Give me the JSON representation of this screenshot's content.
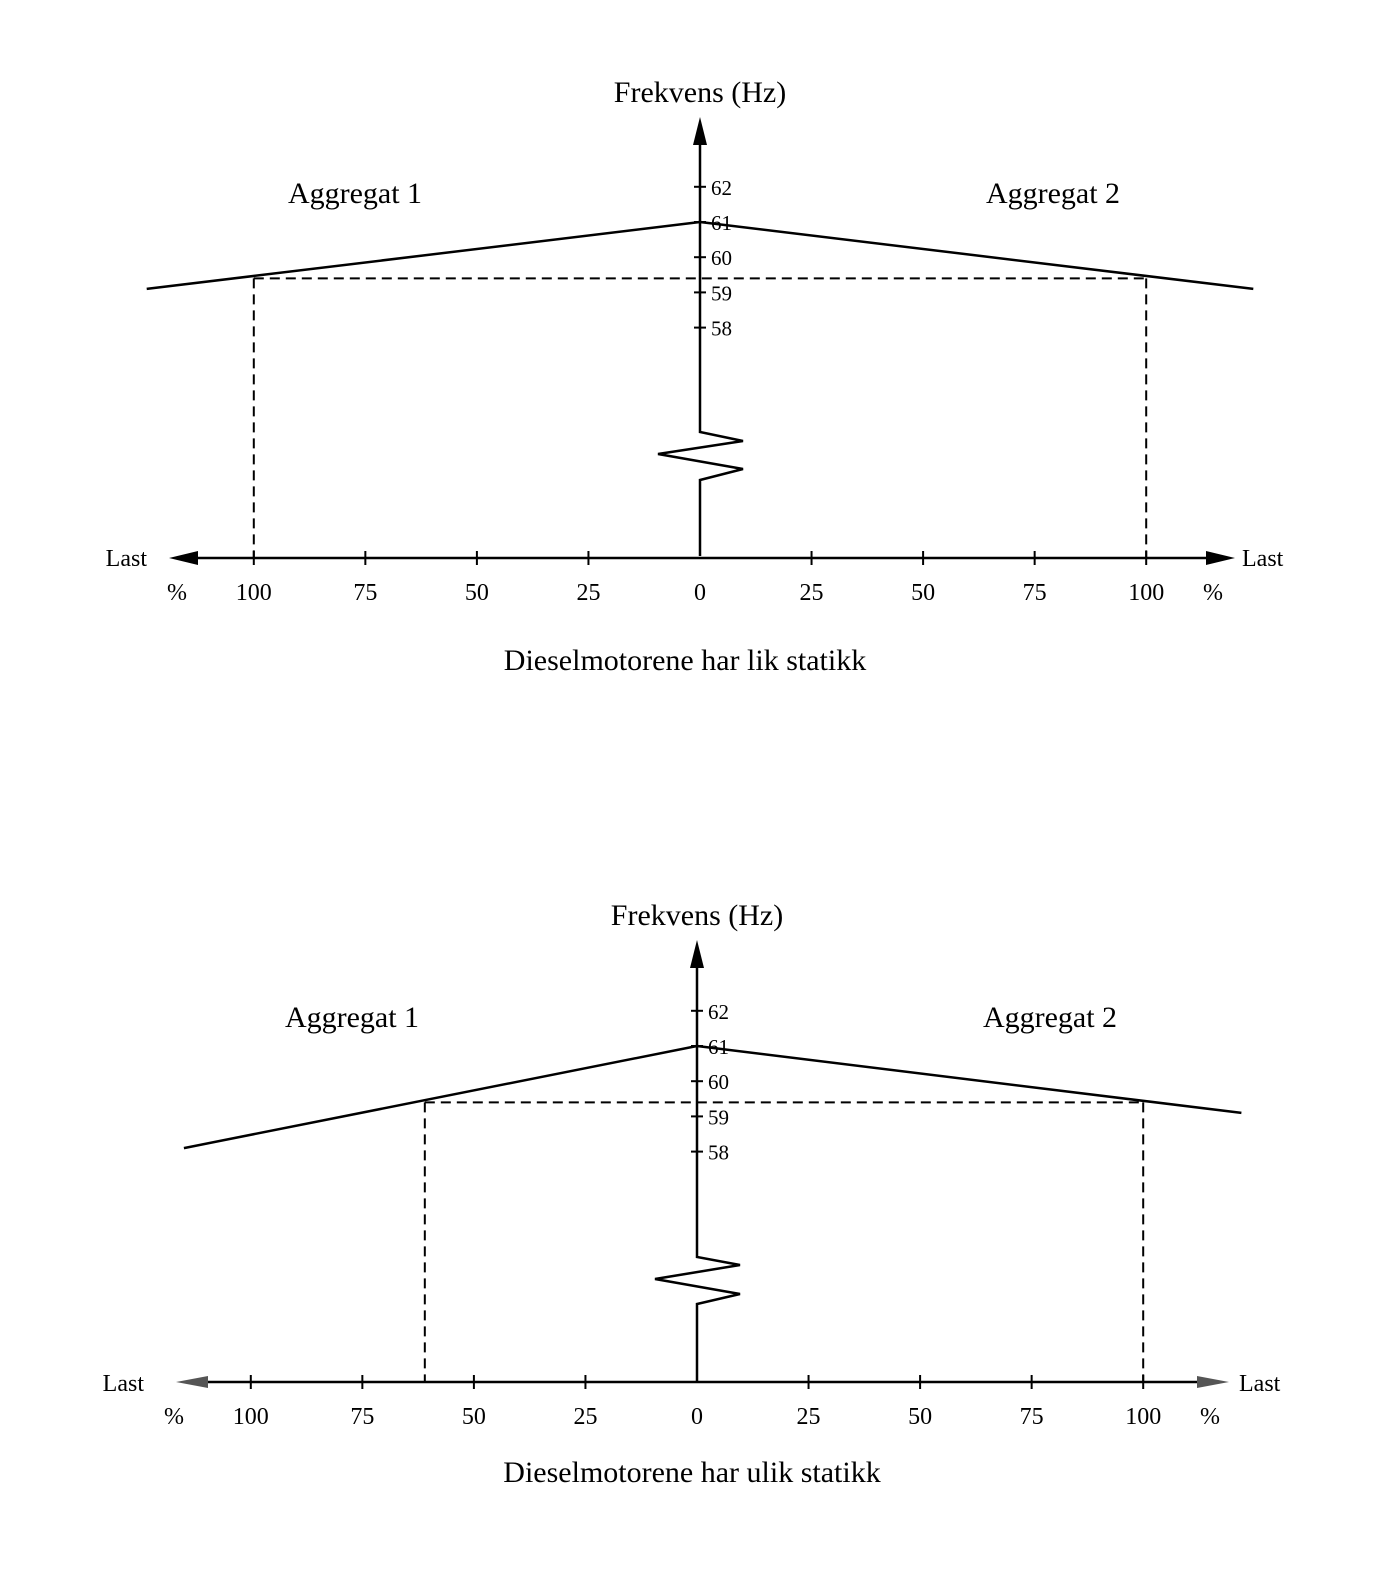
{
  "chart_data": [
    {
      "type": "line",
      "title": "Frekvens (Hz)",
      "caption": "Dieselmotorene har lik statikk",
      "xlabel_left": "Last",
      "xlabel_right": "Last",
      "percent_label": "%",
      "x_ticks_left": [
        "100",
        "75",
        "50",
        "25"
      ],
      "x_tick_center": "0",
      "x_ticks_right": [
        "25",
        "50",
        "75",
        "100"
      ],
      "y_ticks": [
        "62",
        "61",
        "60",
        "59",
        "58"
      ],
      "y_tick_values": [
        62,
        61,
        60,
        59,
        58
      ],
      "xlim": [
        -124,
        124
      ],
      "series": [
        {
          "name": "Aggregat 1",
          "x": [
            0,
            -124
          ],
          "y": [
            61,
            59.1
          ]
        },
        {
          "name": "Aggregat 2",
          "x": [
            0,
            124
          ],
          "y": [
            61,
            59.1
          ]
        }
      ],
      "operating_frequency": 59.4,
      "operating_load": {
        "Aggregat 1": 100,
        "Aggregat 2": 100
      }
    },
    {
      "type": "line",
      "title": "Frekvens (Hz)",
      "caption": "Dieselmotorene har ulik statikk",
      "xlabel_left": "Last",
      "xlabel_right": "Last",
      "percent_label": "%",
      "x_ticks_left": [
        "100",
        "75",
        "50",
        "25"
      ],
      "x_tick_center": "0",
      "x_ticks_right": [
        "25",
        "50",
        "75",
        "100"
      ],
      "y_ticks": [
        "62",
        "61",
        "60",
        "59",
        "58"
      ],
      "y_tick_values": [
        62,
        61,
        60,
        59,
        58
      ],
      "xlim": [
        -124,
        124
      ],
      "series": [
        {
          "name": "Aggregat 1",
          "x": [
            0,
            -115
          ],
          "y": [
            61,
            58.1
          ]
        },
        {
          "name": "Aggregat 2",
          "x": [
            0,
            122
          ],
          "y": [
            61,
            59.1
          ]
        }
      ],
      "operating_frequency": 59.4,
      "operating_load": {
        "Aggregat 1": 61,
        "Aggregat 2": 100
      }
    }
  ]
}
